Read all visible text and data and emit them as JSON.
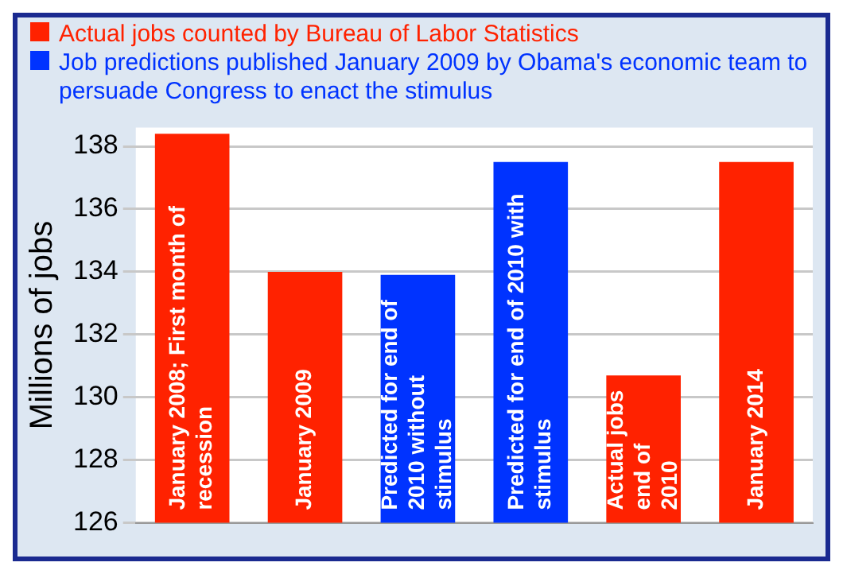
{
  "chart_data": {
    "type": "bar",
    "categories": [
      "January 2008; First month of recession",
      "January 2009",
      "Predicted for end of 2010 without stimulus",
      "Predicted for end of 2010 with stimulus",
      "Actual jobs end of 2010",
      "January 2014"
    ],
    "series": [
      {
        "name": "Actual jobs counted by Bureau of Labor Statistics",
        "color": "#ff2200",
        "values": [
          138.4,
          134,
          null,
          null,
          130.7,
          137.5
        ]
      },
      {
        "name": "Job predictions published January 2009 by Obama's economic team to persuade Congress to enact the stimulus",
        "color": "#0033ff",
        "values": [
          null,
          null,
          133.9,
          137.5,
          null,
          null
        ]
      }
    ],
    "ylabel": "Millions of jobs",
    "ylim": [
      126,
      138.6
    ],
    "yticks": [
      126,
      128,
      130,
      132,
      134,
      136,
      138
    ],
    "grid": "y",
    "legend": "top"
  }
}
